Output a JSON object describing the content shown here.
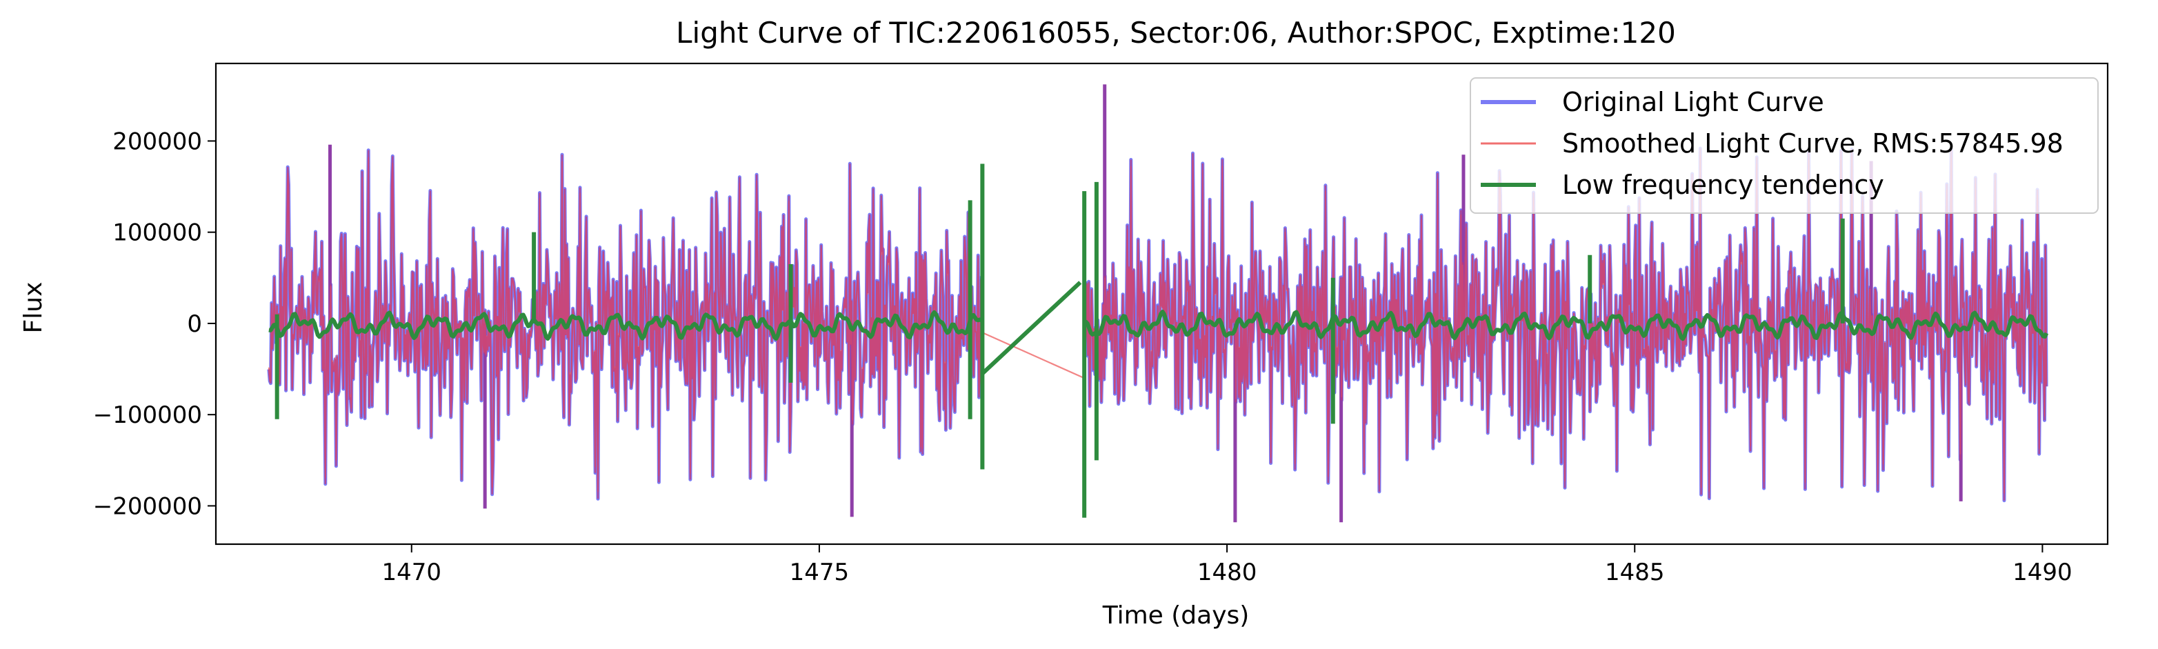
{
  "chart_data": {
    "type": "line",
    "title": "Light Curve of TIC:220616055, Sector:06, Author:SPOC, Exptime:120",
    "xlabel": "Time (days)",
    "ylabel": "Flux",
    "xlim": [
      1467.6,
      1490.8
    ],
    "ylim": [
      -242000,
      285000
    ],
    "x_ticks": [
      1470,
      1475,
      1480,
      1485,
      1490
    ],
    "x_tick_labels": [
      "1470",
      "1475",
      "1480",
      "1485",
      "1490"
    ],
    "y_ticks": [
      200000,
      100000,
      0,
      -100000,
      -200000
    ],
    "y_tick_labels": [
      "200000",
      "100000",
      "0",
      "−100000",
      "−200000"
    ],
    "grid": false,
    "legend_position": "top-right",
    "segments": [
      [
        1468.25,
        1477.0
      ],
      [
        1478.25,
        1490.05
      ]
    ],
    "series": [
      {
        "name": "Original Light Curve",
        "color": "#7b7bf5",
        "style": "noisy-thick",
        "typical_range": [
          -130000,
          130000
        ],
        "max": 262000,
        "min": -218000
      },
      {
        "name": "Smoothed Light Curve, RMS:57845.98",
        "color": "#f07070",
        "style": "noisy-thin",
        "rms": 57845.98
      },
      {
        "name": "Low frequency tendency",
        "color": "#2e8b3e",
        "style": "trend",
        "gap_line": [
          [
            1477.0,
            -55000
          ],
          [
            1478.2,
            45000
          ]
        ],
        "spikes": [
          {
            "x": 1468.35,
            "y0": -105000,
            "y1": 10000
          },
          {
            "x": 1471.5,
            "y0": 0,
            "y1": 100000
          },
          {
            "x": 1474.65,
            "y0": -65000,
            "y1": 65000
          },
          {
            "x": 1476.85,
            "y0": -105000,
            "y1": 135000
          },
          {
            "x": 1477.0,
            "y0": -160000,
            "y1": 175000
          },
          {
            "x": 1478.25,
            "y0": -213000,
            "y1": 145000
          },
          {
            "x": 1478.4,
            "y0": -150000,
            "y1": 155000
          },
          {
            "x": 1481.3,
            "y0": -110000,
            "y1": 50000
          },
          {
            "x": 1484.45,
            "y0": 0,
            "y1": 75000
          },
          {
            "x": 1487.55,
            "y0": 0,
            "y1": 115000
          }
        ]
      }
    ]
  }
}
